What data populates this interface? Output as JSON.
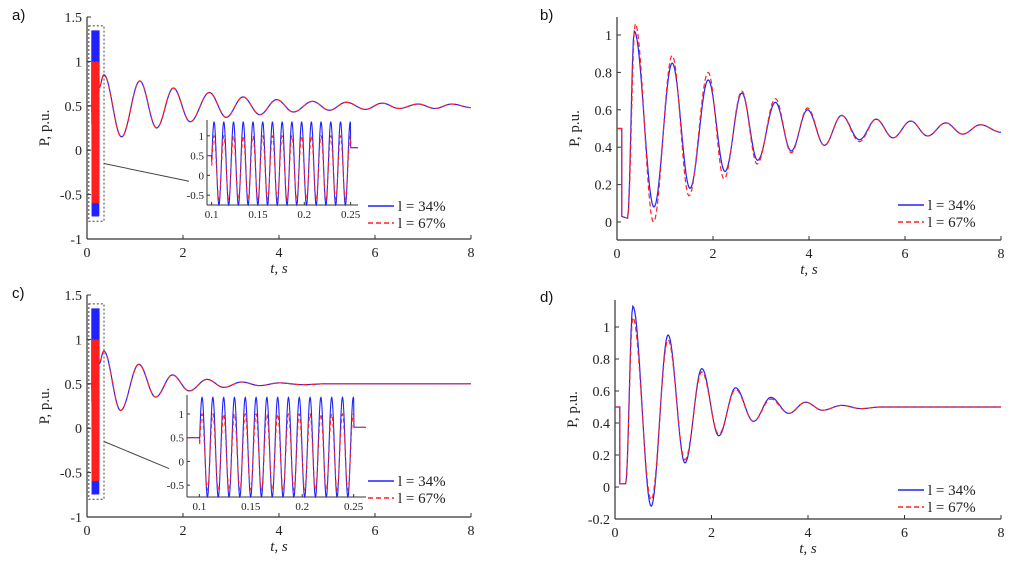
{
  "chart_data": [
    {
      "panel": "a)",
      "type": "line",
      "xlabel": "t, s",
      "ylabel": "P, p.u.",
      "xlim": [
        0,
        8
      ],
      "ylim": [
        -1,
        1.5
      ],
      "xticks": [
        "0",
        "2",
        "4",
        "6",
        "8"
      ],
      "xtick_values": [
        0,
        2,
        4,
        6,
        8
      ],
      "yticks": [
        "-1",
        "-0.5",
        "0",
        "0.5",
        "1",
        "1.5"
      ],
      "ytick_values": [
        -1,
        -0.5,
        0,
        0.5,
        1,
        1.5
      ],
      "legend": "bottom-right",
      "series": [
        {
          "name": "l = 34%",
          "color": "#2222ff",
          "dash": false,
          "fault": {
            "t0": 0.1,
            "t1": 0.25,
            "max": 1.35,
            "min": -0.75,
            "period": 0.0105,
            "pre": 0.5,
            "post": 0.7
          },
          "extrema": [
            [
              0.25,
              0.7
            ],
            [
              0.35,
              0.85
            ],
            [
              0.72,
              0.15
            ],
            [
              1.1,
              0.78
            ],
            [
              1.45,
              0.25
            ],
            [
              1.8,
              0.7
            ],
            [
              2.15,
              0.32
            ],
            [
              2.55,
              0.65
            ],
            [
              2.9,
              0.37
            ],
            [
              3.25,
              0.6
            ],
            [
              3.6,
              0.4
            ],
            [
              3.95,
              0.57
            ],
            [
              4.3,
              0.43
            ],
            [
              4.7,
              0.55
            ],
            [
              5.05,
              0.45
            ],
            [
              5.4,
              0.54
            ],
            [
              5.8,
              0.46
            ],
            [
              6.15,
              0.53
            ],
            [
              6.5,
              0.47
            ],
            [
              6.9,
              0.52
            ],
            [
              7.25,
              0.47
            ],
            [
              7.6,
              0.52
            ],
            [
              8,
              0.48
            ]
          ]
        },
        {
          "name": "l = 67%",
          "color": "#ff2020",
          "dash": true,
          "fault": {
            "t0": 0.1,
            "t1": 0.25,
            "max": 1.0,
            "min": -0.6,
            "period": 0.0105,
            "pre": 0.5,
            "post": 0.7
          },
          "extrema": [
            [
              0.25,
              0.7
            ],
            [
              0.35,
              0.85
            ],
            [
              0.72,
              0.15
            ],
            [
              1.1,
              0.78
            ],
            [
              1.45,
              0.25
            ],
            [
              1.8,
              0.7
            ],
            [
              2.15,
              0.32
            ],
            [
              2.55,
              0.65
            ],
            [
              2.9,
              0.37
            ],
            [
              3.25,
              0.6
            ],
            [
              3.6,
              0.4
            ],
            [
              3.95,
              0.57
            ],
            [
              4.3,
              0.43
            ],
            [
              4.7,
              0.55
            ],
            [
              5.05,
              0.45
            ],
            [
              5.4,
              0.54
            ],
            [
              5.8,
              0.46
            ],
            [
              6.15,
              0.53
            ],
            [
              6.5,
              0.47
            ],
            [
              6.9,
              0.52
            ],
            [
              7.25,
              0.47
            ],
            [
              7.6,
              0.52
            ],
            [
              8,
              0.48
            ]
          ]
        }
      ],
      "inset": {
        "xlim": [
          0.095,
          0.258
        ],
        "ylim": [
          -0.75,
          1.4
        ],
        "xticks": [
          "0.1",
          "0.15",
          "0.2",
          "0.25"
        ],
        "xtick_values": [
          0.1,
          0.15,
          0.2,
          0.25
        ],
        "yticks": [
          "-0.5",
          "0",
          "0.5",
          "1"
        ],
        "ytick_values": [
          -0.5,
          0,
          0.5,
          1
        ]
      }
    },
    {
      "panel": "b)",
      "type": "line",
      "xlabel": "t, s",
      "ylabel": "P, p.u.",
      "xlim": [
        0,
        8
      ],
      "ylim": [
        -0.1,
        1.1
      ],
      "xticks": [
        "0",
        "2",
        "4",
        "6",
        "8"
      ],
      "xtick_values": [
        0,
        2,
        4,
        6,
        8
      ],
      "yticks": [
        "0",
        "0.2",
        "0.4",
        "0.6",
        "0.8",
        "1"
      ],
      "ytick_values": [
        0,
        0.2,
        0.4,
        0.6,
        0.8,
        1
      ],
      "legend": "bottom-right",
      "series": [
        {
          "name": "l = 34%",
          "color": "#2222ff",
          "dash": false,
          "steps": [
            [
              0,
              0.5
            ],
            [
              0.1,
              0.5
            ],
            [
              0.1,
              0.03
            ],
            [
              0.22,
              0.02
            ]
          ],
          "extrema": [
            [
              0.22,
              0.02
            ],
            [
              0.36,
              1.02
            ],
            [
              0.77,
              0.08
            ],
            [
              1.15,
              0.85
            ],
            [
              1.52,
              0.18
            ],
            [
              1.9,
              0.76
            ],
            [
              2.25,
              0.27
            ],
            [
              2.6,
              0.69
            ],
            [
              2.93,
              0.33
            ],
            [
              3.3,
              0.64
            ],
            [
              3.63,
              0.38
            ],
            [
              3.97,
              0.6
            ],
            [
              4.32,
              0.41
            ],
            [
              4.68,
              0.57
            ],
            [
              5.05,
              0.44
            ],
            [
              5.4,
              0.55
            ],
            [
              5.75,
              0.45
            ],
            [
              6.12,
              0.54
            ],
            [
              6.47,
              0.46
            ],
            [
              6.85,
              0.53
            ],
            [
              7.2,
              0.47
            ],
            [
              7.57,
              0.52
            ],
            [
              8,
              0.48
            ]
          ]
        },
        {
          "name": "l = 67%",
          "color": "#ff2020",
          "dash": true,
          "steps": [
            [
              0,
              0.5
            ],
            [
              0.1,
              0.5
            ],
            [
              0.1,
              0.03
            ],
            [
              0.22,
              0.02
            ]
          ],
          "extrema": [
            [
              0.22,
              0.02
            ],
            [
              0.38,
              1.06
            ],
            [
              0.76,
              0.0
            ],
            [
              1.15,
              0.89
            ],
            [
              1.5,
              0.14
            ],
            [
              1.9,
              0.8
            ],
            [
              2.23,
              0.23
            ],
            [
              2.6,
              0.7
            ],
            [
              2.92,
              0.31
            ],
            [
              3.3,
              0.66
            ],
            [
              3.63,
              0.37
            ],
            [
              3.97,
              0.61
            ],
            [
              4.32,
              0.41
            ],
            [
              4.68,
              0.57
            ],
            [
              5.05,
              0.43
            ],
            [
              5.4,
              0.55
            ],
            [
              5.75,
              0.45
            ],
            [
              6.12,
              0.54
            ],
            [
              6.47,
              0.46
            ],
            [
              6.85,
              0.53
            ],
            [
              7.2,
              0.47
            ],
            [
              7.57,
              0.52
            ],
            [
              8,
              0.48
            ]
          ]
        }
      ]
    },
    {
      "panel": "c)",
      "type": "line",
      "xlabel": "t, s",
      "ylabel": "P, p.u.",
      "xlim": [
        0,
        8
      ],
      "ylim": [
        -1,
        1.5
      ],
      "xticks": [
        "0",
        "2",
        "4",
        "6",
        "8"
      ],
      "xtick_values": [
        0,
        2,
        4,
        6,
        8
      ],
      "yticks": [
        "-1",
        "-0.5",
        "0",
        "0.5",
        "1",
        "1.5"
      ],
      "ytick_values": [
        -1,
        -0.5,
        0,
        0.5,
        1,
        1.5
      ],
      "legend": "bottom-right",
      "series": [
        {
          "name": "l = 34%",
          "color": "#2222ff",
          "dash": false,
          "fault": {
            "t0": 0.1,
            "t1": 0.25,
            "max": 1.35,
            "min": -0.75,
            "period": 0.0105,
            "pre": 0.5,
            "post": 0.72
          },
          "extrema": [
            [
              0.25,
              0.72
            ],
            [
              0.35,
              0.87
            ],
            [
              0.7,
              0.2
            ],
            [
              1.08,
              0.72
            ],
            [
              1.43,
              0.35
            ],
            [
              1.78,
              0.6
            ],
            [
              2.13,
              0.42
            ],
            [
              2.5,
              0.55
            ],
            [
              2.85,
              0.46
            ],
            [
              3.22,
              0.52
            ],
            [
              3.6,
              0.48
            ],
            [
              4,
              0.51
            ],
            [
              4.5,
              0.49
            ],
            [
              5,
              0.5
            ],
            [
              8,
              0.5
            ]
          ]
        },
        {
          "name": "l = 67%",
          "color": "#ff2020",
          "dash": true,
          "fault": {
            "t0": 0.1,
            "t1": 0.25,
            "max": 1.0,
            "min": -0.6,
            "period": 0.0105,
            "pre": 0.5,
            "post": 0.72
          },
          "extrema": [
            [
              0.25,
              0.72
            ],
            [
              0.35,
              0.87
            ],
            [
              0.7,
              0.2
            ],
            [
              1.08,
              0.72
            ],
            [
              1.43,
              0.35
            ],
            [
              1.78,
              0.6
            ],
            [
              2.13,
              0.42
            ],
            [
              2.5,
              0.55
            ],
            [
              2.85,
              0.46
            ],
            [
              3.22,
              0.52
            ],
            [
              3.6,
              0.48
            ],
            [
              4,
              0.51
            ],
            [
              4.5,
              0.49
            ],
            [
              5,
              0.5
            ],
            [
              8,
              0.5
            ]
          ]
        }
      ],
      "inset": {
        "xlim": [
          0.088,
          0.262
        ],
        "ylim": [
          -0.75,
          1.4
        ],
        "xticks": [
          "0.1",
          "0.15",
          "0.2",
          "0.25"
        ],
        "xtick_values": [
          0.1,
          0.15,
          0.2,
          0.25
        ],
        "yticks": [
          "-0.5",
          "0",
          "0.5",
          "1"
        ],
        "ytick_values": [
          -0.5,
          0,
          0.5,
          1
        ]
      }
    },
    {
      "panel": "d)",
      "type": "line",
      "xlabel": "t, s",
      "ylabel": "P, p.u.",
      "xlim": [
        0,
        8
      ],
      "ylim": [
        -0.2,
        1.2
      ],
      "xticks": [
        "0",
        "2",
        "4",
        "6",
        "8"
      ],
      "xtick_values": [
        0,
        2,
        4,
        6,
        8
      ],
      "yticks": [
        "-0.2",
        "0",
        "0.2",
        "0.4",
        "0.6",
        "0.8",
        "1"
      ],
      "ytick_values": [
        -0.2,
        0,
        0.2,
        0.4,
        0.6,
        0.8,
        1
      ],
      "legend": "bottom-right",
      "series": [
        {
          "name": "l = 34%",
          "color": "#2222ff",
          "dash": false,
          "steps": [
            [
              0,
              0.5
            ],
            [
              0.1,
              0.5
            ],
            [
              0.1,
              0.02
            ],
            [
              0.22,
              0.02
            ]
          ],
          "extrema": [
            [
              0.22,
              0.02
            ],
            [
              0.37,
              1.13
            ],
            [
              0.75,
              -0.12
            ],
            [
              1.1,
              0.95
            ],
            [
              1.45,
              0.15
            ],
            [
              1.8,
              0.74
            ],
            [
              2.15,
              0.32
            ],
            [
              2.5,
              0.62
            ],
            [
              2.87,
              0.41
            ],
            [
              3.23,
              0.56
            ],
            [
              3.6,
              0.46
            ],
            [
              3.95,
              0.53
            ],
            [
              4.3,
              0.48
            ],
            [
              4.7,
              0.51
            ],
            [
              5.1,
              0.49
            ],
            [
              5.5,
              0.5
            ],
            [
              8,
              0.5
            ]
          ]
        },
        {
          "name": "l = 67%",
          "color": "#ff2020",
          "dash": true,
          "steps": [
            [
              0,
              0.5
            ],
            [
              0.1,
              0.5
            ],
            [
              0.1,
              0.02
            ],
            [
              0.22,
              0.02
            ]
          ],
          "extrema": [
            [
              0.22,
              0.02
            ],
            [
              0.37,
              1.06
            ],
            [
              0.75,
              -0.08
            ],
            [
              1.1,
              0.92
            ],
            [
              1.45,
              0.17
            ],
            [
              1.8,
              0.72
            ],
            [
              2.15,
              0.33
            ],
            [
              2.5,
              0.61
            ],
            [
              2.87,
              0.41
            ],
            [
              3.23,
              0.55
            ],
            [
              3.6,
              0.46
            ],
            [
              3.95,
              0.53
            ],
            [
              4.3,
              0.48
            ],
            [
              4.7,
              0.51
            ],
            [
              5.1,
              0.49
            ],
            [
              5.5,
              0.5
            ],
            [
              8,
              0.5
            ]
          ]
        }
      ]
    }
  ]
}
